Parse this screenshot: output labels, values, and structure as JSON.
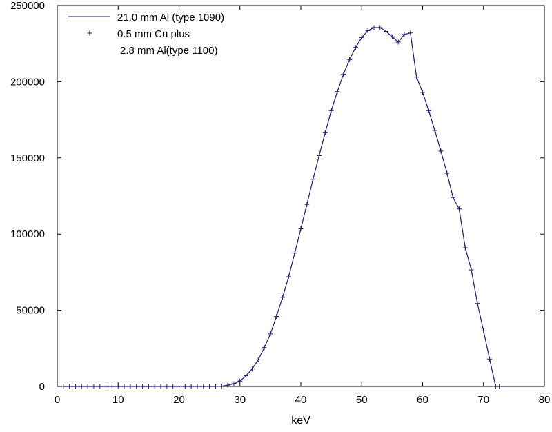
{
  "chart_data": {
    "type": "line",
    "title": "",
    "xlabel": "keV",
    "ylabel": "",
    "xlim": [
      0,
      80
    ],
    "ylim": [
      0,
      250000
    ],
    "x_ticks": [
      "0",
      "10",
      "20",
      "30",
      "40",
      "50",
      "60",
      "70",
      "80"
    ],
    "y_ticks": [
      "0",
      "50000",
      "100000",
      "150000",
      "200000",
      "250000"
    ],
    "grid": false,
    "legend_position": "top-left",
    "colors": {
      "series": "#1a1a6e",
      "axes": "#000000"
    },
    "series": [
      {
        "name": "21.0 mm Al (type 1090)",
        "style": "line",
        "x": [
          1,
          2,
          3,
          4,
          5,
          6,
          7,
          8,
          9,
          10,
          11,
          12,
          13,
          14,
          15,
          16,
          17,
          18,
          19,
          20,
          21,
          22,
          23,
          24,
          25,
          26,
          27,
          28,
          29,
          30,
          31,
          32,
          33,
          34,
          35,
          36,
          37,
          38,
          39,
          40,
          41,
          42,
          43,
          44,
          45,
          46,
          47,
          48,
          49,
          50,
          51,
          52,
          53,
          54,
          55,
          56,
          57,
          58,
          59,
          60,
          61,
          62,
          63,
          64,
          65,
          66,
          67,
          68,
          69,
          70,
          71,
          72,
          72.6
        ],
        "y": [
          0,
          0,
          0,
          0,
          0,
          0,
          0,
          0,
          0,
          0,
          0,
          0,
          0,
          0,
          0,
          0,
          0,
          0,
          0,
          0,
          0,
          0,
          0,
          0,
          0,
          0,
          200,
          800,
          1800,
          3500,
          7000,
          11500,
          17500,
          25500,
          34500,
          46000,
          58500,
          72000,
          87500,
          103500,
          119500,
          136000,
          151500,
          166500,
          181000,
          193500,
          205000,
          214500,
          222500,
          229000,
          233500,
          235500,
          235500,
          233000,
          229500,
          226000,
          231000,
          232000,
          203000,
          193000,
          181000,
          168000,
          154500,
          140000,
          124000,
          116500,
          91000,
          76500,
          54500,
          36500,
          18000,
          0,
          0
        ]
      },
      {
        "name": "0.5 mm Cu plus",
        "name_line2": "2.8 mm Al(type 1100)",
        "style": "markers",
        "marker": "+",
        "x": [
          1,
          2,
          3,
          4,
          5,
          6,
          7,
          8,
          9,
          10,
          11,
          12,
          13,
          14,
          15,
          16,
          17,
          18,
          19,
          20,
          21,
          22,
          23,
          24,
          25,
          26,
          27,
          28,
          29,
          30,
          31,
          32,
          33,
          34,
          35,
          36,
          37,
          38,
          39,
          40,
          41,
          42,
          43,
          44,
          45,
          46,
          47,
          48,
          49,
          50,
          51,
          52,
          53,
          54,
          55,
          56,
          57,
          58,
          59,
          60,
          61,
          62,
          63,
          64,
          65,
          66,
          67,
          68,
          69,
          70,
          71,
          72,
          72.6
        ],
        "y": [
          0,
          0,
          0,
          0,
          0,
          0,
          0,
          0,
          0,
          0,
          0,
          0,
          0,
          0,
          0,
          0,
          0,
          0,
          0,
          0,
          0,
          0,
          0,
          0,
          0,
          0,
          200,
          800,
          1800,
          3500,
          7000,
          11500,
          17500,
          25500,
          34500,
          46000,
          58500,
          72000,
          87500,
          103500,
          119500,
          136000,
          151500,
          166500,
          181000,
          193500,
          205000,
          214500,
          222500,
          229000,
          233500,
          235500,
          235500,
          233000,
          229500,
          226000,
          231000,
          232000,
          203000,
          193000,
          181000,
          168000,
          154500,
          140000,
          124000,
          116500,
          91000,
          76500,
          54500,
          36500,
          18000,
          0,
          0
        ]
      }
    ]
  }
}
